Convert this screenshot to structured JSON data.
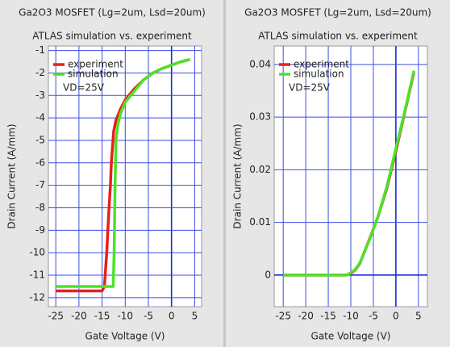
{
  "chart_data": [
    {
      "type": "line",
      "title": "Ga2O3 MOSFET (Lg=2um, Lsd=20um)",
      "subtitle": "ATLAS simulation vs. experiment",
      "x_label": "Gate Voltage (V)",
      "y_label": "Drain Current (A/mm)",
      "annotation": "VD=25V",
      "xlim": [
        -26.6,
        6.5
      ],
      "xticks": [
        -25,
        -20,
        -15,
        -10,
        -5,
        0,
        5
      ],
      "ylim": [
        -12.4,
        -0.8
      ],
      "yticks": [
        -1,
        -2,
        -3,
        -4,
        -5,
        -6,
        -7,
        -8,
        -9,
        -10,
        -11,
        -12
      ],
      "grid": true,
      "legend": "upper left",
      "series": [
        {
          "name": "experiment",
          "color": "#e8201a",
          "x": [
            -25,
            -20,
            -15,
            -14.5,
            -14,
            -13.5,
            -13.2,
            -13,
            -12.5,
            -12,
            -11,
            -10,
            -8,
            -6,
            -4,
            -2,
            0,
            2,
            4
          ],
          "values": [
            -11.7,
            -11.7,
            -11.7,
            -11.5,
            -10,
            -8,
            -7,
            -6,
            -4.6,
            -4.1,
            -3.6,
            -3.2,
            -2.7,
            -2.3,
            -2.0,
            -1.8,
            -1.65,
            -1.5,
            -1.4
          ]
        },
        {
          "name": "simulation",
          "color": "#4ee22a",
          "x": [
            -25,
            -20,
            -15,
            -12.6,
            -12.4,
            -12.2,
            -12,
            -11.6,
            -11,
            -10,
            -8,
            -6,
            -4,
            -2,
            0,
            2,
            4
          ],
          "values": [
            -11.5,
            -11.5,
            -11.5,
            -11.5,
            -10,
            -7,
            -5,
            -4.3,
            -3.8,
            -3.3,
            -2.8,
            -2.3,
            -2.0,
            -1.8,
            -1.65,
            -1.5,
            -1.4
          ]
        }
      ]
    },
    {
      "type": "line",
      "title": "Ga2O3 MOSFET (Lg=2um, Lsd=20um)",
      "subtitle": "ATLAS simulation vs. experiment",
      "x_label": "Gate Voltage (V)",
      "y_label": "Drain Current (A/mm)",
      "annotation": "VD=25V",
      "xlim": [
        -27,
        7
      ],
      "xticks": [
        -25,
        -20,
        -15,
        -10,
        -5,
        0,
        5
      ],
      "ylim": [
        -0.006,
        0.0435
      ],
      "yticks": [
        0,
        0.01,
        0.02,
        0.03,
        0.04
      ],
      "grid": true,
      "legend": "upper left",
      "series": [
        {
          "name": "experiment",
          "color": "#e8201a",
          "x": [
            -25,
            -20,
            -15,
            -11,
            -10,
            -9,
            -8,
            -6,
            -4,
            -2,
            0,
            2,
            4
          ],
          "values": [
            0,
            0,
            0,
            0,
            0.0003,
            0.001,
            0.0022,
            0.0065,
            0.011,
            0.0165,
            0.0235,
            0.031,
            0.0385
          ]
        },
        {
          "name": "simulation",
          "color": "#4ee22a",
          "x": [
            -25,
            -20,
            -15,
            -11,
            -10,
            -9,
            -8,
            -6,
            -4,
            -2,
            0,
            2,
            4
          ],
          "values": [
            0,
            0,
            0,
            0,
            0.0004,
            0.0011,
            0.0023,
            0.0064,
            0.011,
            0.0168,
            0.024,
            0.0312,
            0.0388
          ]
        }
      ]
    }
  ]
}
